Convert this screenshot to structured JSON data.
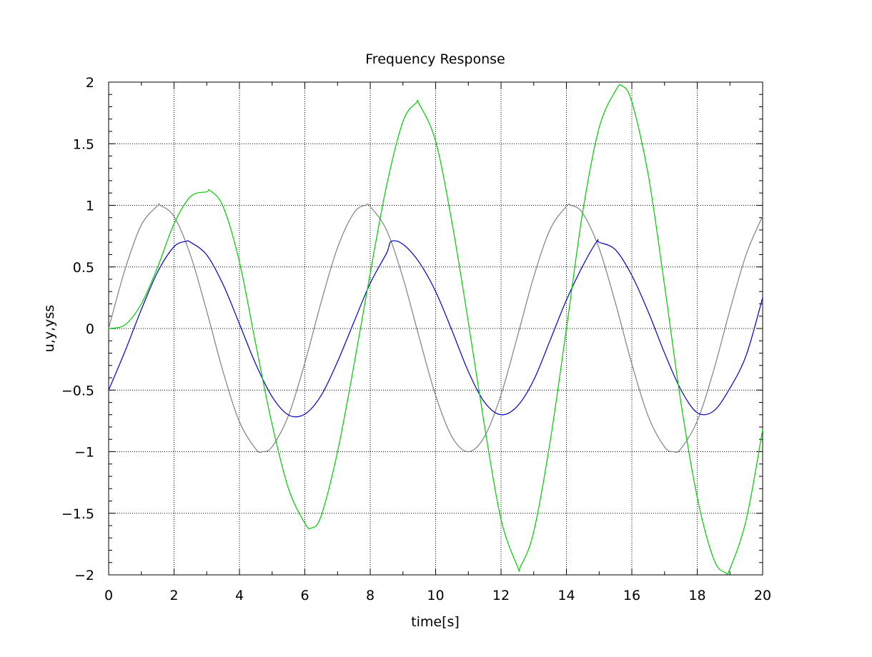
{
  "chart_data": {
    "type": "line",
    "title": "Frequency Response",
    "xlabel": "time[s]",
    "ylabel": "u,y,yss",
    "xlim": [
      0,
      20
    ],
    "ylim": [
      -2,
      2
    ],
    "x_ticks": [
      "0",
      "2",
      "4",
      "6",
      "8",
      "10",
      "12",
      "14",
      "16",
      "18",
      "20"
    ],
    "y_ticks": [
      "2",
      "1.5",
      "1",
      "0.5",
      "0",
      "−0.5",
      "−1",
      "−1.5",
      "−2"
    ],
    "grid": true,
    "legend": "none",
    "series": [
      {
        "color": "#808080",
        "x": [
          0,
          0.5,
          1,
          1.5,
          1.57,
          2,
          2.5,
          3,
          3.5,
          4,
          4.5,
          4.71,
          5,
          5.5,
          6,
          6.5,
          7,
          7.5,
          7.85,
          8,
          8.5,
          9,
          9.5,
          10,
          10.5,
          11,
          11.5,
          12,
          12.5,
          13,
          13.5,
          14,
          14.14,
          14.5,
          15,
          15.5,
          16,
          16.5,
          17,
          17.28,
          17.5,
          18,
          18.5,
          19,
          19.5,
          20
        ],
        "y": [
          0,
          0.479,
          0.841,
          0.997,
          1,
          0.909,
          0.598,
          0.141,
          -0.351,
          -0.757,
          -0.978,
          -1,
          -0.959,
          -0.706,
          -0.279,
          0.215,
          0.657,
          0.938,
          1,
          0.989,
          0.798,
          0.412,
          -0.075,
          -0.544,
          -0.88,
          -1,
          -0.875,
          -0.537,
          -0.066,
          0.42,
          0.804,
          0.991,
          1,
          0.935,
          0.65,
          0.206,
          -0.288,
          -0.712,
          -0.961,
          -1,
          -0.977,
          -0.751,
          -0.342,
          0.15,
          0.604,
          0.913
        ]
      },
      {
        "color": "#0000cc",
        "x": [
          0,
          0.5,
          1,
          1.5,
          2,
          2.36,
          2.5,
          3,
          3.5,
          4,
          4.5,
          5,
          5.5,
          6,
          6.5,
          7,
          7.5,
          8,
          8.5,
          8.64,
          9,
          9.5,
          10,
          10.5,
          11,
          11.5,
          12,
          12.5,
          13,
          13.5,
          14,
          14.5,
          14.93,
          15,
          15.5,
          16,
          16.5,
          17,
          17.5,
          18,
          18.5,
          19,
          19.5,
          20
        ],
        "y": [
          -0.5,
          -0.185,
          0.154,
          0.46,
          0.664,
          0.707,
          0.701,
          0.597,
          0.357,
          0.037,
          -0.29,
          -0.554,
          -0.702,
          -0.695,
          -0.543,
          -0.269,
          0.052,
          0.368,
          0.612,
          0.707,
          0.684,
          0.536,
          0.3,
          -0.017,
          -0.349,
          -0.6,
          -0.7,
          -0.63,
          -0.418,
          -0.096,
          0.232,
          0.509,
          0.707,
          0.7,
          0.639,
          0.431,
          0.136,
          -0.199,
          -0.497,
          -0.683,
          -0.67,
          -0.484,
          -0.215,
          0.25
        ]
      },
      {
        "color": "#00cc00",
        "x": [
          0,
          0.5,
          1,
          1.5,
          2,
          2.5,
          3,
          3.1,
          3.5,
          4,
          4.5,
          5,
          5.5,
          6,
          6.2,
          6.5,
          7,
          7.5,
          8,
          8.5,
          9,
          9.4,
          9.5,
          10,
          10.5,
          11,
          11.5,
          12,
          12.5,
          12.6,
          13,
          13.5,
          14,
          14.5,
          15,
          15.5,
          15.7,
          16,
          16.5,
          17,
          17.5,
          18,
          18.5,
          18.85,
          19,
          19.5,
          20
        ],
        "y": [
          0,
          0.03,
          0.2,
          0.5,
          0.85,
          1.07,
          1.11,
          1.12,
          0.99,
          0.54,
          -0.13,
          -0.78,
          -1.3,
          -1.58,
          -1.62,
          -1.52,
          -1.0,
          -0.3,
          0.45,
          1.16,
          1.68,
          1.83,
          1.82,
          1.52,
          0.86,
          0.05,
          -0.8,
          -1.55,
          -1.93,
          -1.93,
          -1.65,
          -0.92,
          0.0,
          0.95,
          1.63,
          1.93,
          1.97,
          1.84,
          1.25,
          0.35,
          -0.6,
          -1.37,
          -1.87,
          -1.98,
          -1.95,
          -1.55,
          -0.82
        ]
      }
    ]
  }
}
